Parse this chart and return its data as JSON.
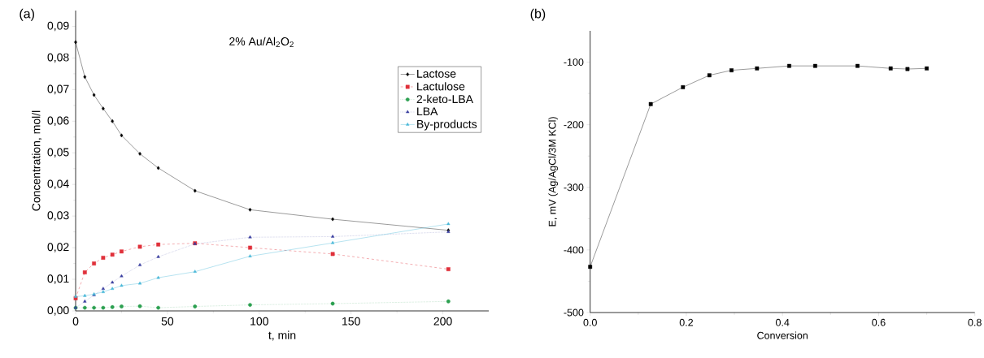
{
  "chart_data": [
    {
      "type": "line",
      "xlabel": "t, min",
      "ylabel": "Concentration, mol/l",
      "annotations": [
        "(a)",
        "2% Au/Al$_{2}$O$_{2}$"
      ],
      "x": [
        0,
        5,
        10,
        15,
        20,
        25,
        35,
        45,
        65,
        95,
        140,
        203
      ],
      "series": [
        {
          "name": "Lactose",
          "color": "#000000",
          "marker": "diamond",
          "line_style": "solid",
          "values": [
            0.085,
            0.074,
            0.0683,
            0.064,
            0.06,
            0.0555,
            0.0497,
            0.0452,
            0.038,
            0.032,
            0.029,
            0.0255
          ]
        },
        {
          "name": "Lactulose",
          "color": "#e0303a",
          "marker": "square",
          "line_style": "dashed",
          "values": [
            0.004,
            0.0122,
            0.015,
            0.0168,
            0.0178,
            0.0188,
            0.0203,
            0.021,
            0.0214,
            0.02,
            0.018,
            0.0132
          ]
        },
        {
          "name": "2-keto-LBA",
          "color": "#2ca050",
          "marker": "circle",
          "line_style": "dotted",
          "values": [
            0.001,
            0.001,
            0.001,
            0.001,
            0.0012,
            0.0014,
            0.0015,
            0.001,
            0.0014,
            0.0019,
            0.0023,
            0.003
          ]
        },
        {
          "name": "LBA",
          "color": "#3a3fa0",
          "marker": "triangle",
          "line_style": "dotted",
          "values": [
            0.001,
            0.003,
            0.005,
            0.007,
            0.009,
            0.011,
            0.0145,
            0.0171,
            0.0212,
            0.0233,
            0.0235,
            0.025
          ]
        },
        {
          "name": "By-products",
          "color": "#4ab8d8",
          "marker": "triangle-down",
          "line_style": "solid",
          "values": [
            0.0045,
            0.0048,
            0.0053,
            0.006,
            0.007,
            0.008,
            0.0087,
            0.0105,
            0.0124,
            0.0173,
            0.0215,
            0.0275
          ]
        }
      ],
      "xlim": [
        0,
        225
      ],
      "xticks": [
        0,
        50,
        100,
        150,
        200
      ],
      "ylim": [
        0,
        0.095
      ],
      "yticks": [
        {
          "value": 0,
          "label": "0,00"
        },
        {
          "value": 0.01,
          "label": "0,01"
        },
        {
          "value": 0.02,
          "label": "0,02"
        },
        {
          "value": 0.03,
          "label": "0,03"
        },
        {
          "value": 0.04,
          "label": "0,04"
        },
        {
          "value": 0.05,
          "label": "0,05"
        },
        {
          "value": 0.06,
          "label": "0,06"
        },
        {
          "value": 0.07,
          "label": "0,07"
        },
        {
          "value": 0.08,
          "label": "0,08"
        },
        {
          "value": 0.09,
          "label": "0,09"
        }
      ],
      "grid": false,
      "legend": "top right"
    },
    {
      "type": "line",
      "xlabel": "Conversion",
      "ylabel": "E, mV (Ag/AgCl/3M KCl)",
      "annotations": [
        "(b)"
      ],
      "x": [
        0,
        0.126,
        0.193,
        0.248,
        0.294,
        0.347,
        0.414,
        0.468,
        0.556,
        0.625,
        0.66,
        0.7
      ],
      "series": [
        {
          "color": "#000000",
          "marker": "square",
          "line_style": "solid",
          "values": [
            -427,
            -167,
            -140,
            -121,
            -113,
            -110,
            -106,
            -106,
            -106,
            -110,
            -111,
            -110
          ]
        }
      ],
      "xlim": [
        0,
        0.8
      ],
      "xticks": [
        {
          "value": 0,
          "label": "0.0"
        },
        {
          "value": 0.2,
          "label": "0.2"
        },
        {
          "value": 0.4,
          "label": "0.4"
        },
        {
          "value": 0.6,
          "label": "0.6"
        },
        {
          "value": 0.8,
          "label": "0.8"
        }
      ],
      "ylim": [
        -500,
        -50
      ],
      "yticks": [
        -500,
        -400,
        -300,
        -200,
        -100
      ],
      "grid": false,
      "legend": false
    }
  ]
}
